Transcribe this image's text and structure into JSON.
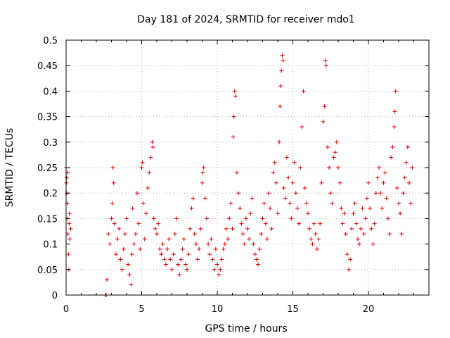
{
  "chart_data": {
    "type": "scatter",
    "title": "Day 181 of 2024, SRMTID for receiver mdo1",
    "xlabel": "GPS time / hours",
    "ylabel": "SRMTID / TECUs",
    "xlim": [
      0,
      24
    ],
    "ylim": [
      0,
      0.5
    ],
    "xticks": [
      0,
      5,
      10,
      15,
      20
    ],
    "xtick_labels": [
      "0",
      "5",
      "10",
      "15",
      "20"
    ],
    "yticks": [
      0,
      0.05,
      0.1,
      0.15,
      0.2,
      0.25,
      0.3,
      0.35,
      0.4,
      0.45,
      0.5
    ],
    "ytick_labels": [
      "0",
      "0.05",
      "0.1",
      "0.15",
      "0.2",
      "0.25",
      "0.3",
      "0.35",
      "0.4",
      "0.45",
      "0.5"
    ],
    "grid": true,
    "marker": "+",
    "marker_color": "#e00000",
    "series": [
      {
        "name": "SRMTID",
        "points": [
          [
            0.0,
            0.25
          ],
          [
            0.02,
            0.22
          ],
          [
            0.05,
            0.2
          ],
          [
            0.08,
            0.18
          ],
          [
            0.1,
            0.15
          ],
          [
            0.12,
            0.12
          ],
          [
            0.15,
            0.08
          ],
          [
            0.18,
            0.05
          ],
          [
            0.2,
            0.14
          ],
          [
            0.22,
            0.16
          ],
          [
            0.25,
            0.11
          ],
          [
            0.3,
            0.13
          ],
          [
            0.05,
            0.23
          ],
          [
            0.1,
            0.24
          ],
          [
            2.6,
            0.0
          ],
          [
            2.65,
            0.0
          ],
          [
            2.7,
            0.03
          ],
          [
            2.8,
            0.12
          ],
          [
            2.9,
            0.1
          ],
          [
            3.0,
            0.15
          ],
          [
            3.05,
            0.18
          ],
          [
            3.1,
            0.25
          ],
          [
            3.15,
            0.22
          ],
          [
            3.2,
            0.14
          ],
          [
            3.3,
            0.08
          ],
          [
            3.4,
            0.11
          ],
          [
            3.5,
            0.13
          ],
          [
            3.6,
            0.07
          ],
          [
            3.7,
            0.05
          ],
          [
            3.8,
            0.09
          ],
          [
            3.9,
            0.12
          ],
          [
            4.0,
            0.15
          ],
          [
            4.1,
            0.06
          ],
          [
            4.2,
            0.04
          ],
          [
            4.3,
            0.02
          ],
          [
            4.35,
            0.08
          ],
          [
            4.4,
            0.17
          ],
          [
            4.5,
            0.1
          ],
          [
            4.6,
            0.12
          ],
          [
            4.7,
            0.2
          ],
          [
            4.8,
            0.14
          ],
          [
            4.9,
            0.09
          ],
          [
            5.0,
            0.25
          ],
          [
            5.05,
            0.26
          ],
          [
            5.1,
            0.18
          ],
          [
            5.2,
            0.11
          ],
          [
            5.3,
            0.16
          ],
          [
            5.4,
            0.21
          ],
          [
            5.5,
            0.24
          ],
          [
            5.6,
            0.27
          ],
          [
            5.7,
            0.3
          ],
          [
            5.75,
            0.29
          ],
          [
            5.8,
            0.15
          ],
          [
            5.9,
            0.13
          ],
          [
            6.0,
            0.12
          ],
          [
            6.1,
            0.14
          ],
          [
            6.2,
            0.09
          ],
          [
            6.3,
            0.08
          ],
          [
            6.4,
            0.1
          ],
          [
            6.5,
            0.07
          ],
          [
            6.6,
            0.06
          ],
          [
            6.7,
            0.09
          ],
          [
            6.8,
            0.11
          ],
          [
            6.9,
            0.07
          ],
          [
            7.0,
            0.05
          ],
          [
            7.1,
            0.08
          ],
          [
            7.2,
            0.12
          ],
          [
            7.3,
            0.15
          ],
          [
            7.4,
            0.06
          ],
          [
            7.5,
            0.04
          ],
          [
            7.6,
            0.07
          ],
          [
            7.7,
            0.09
          ],
          [
            7.8,
            0.11
          ],
          [
            7.9,
            0.06
          ],
          [
            8.0,
            0.05
          ],
          [
            8.1,
            0.08
          ],
          [
            8.2,
            0.13
          ],
          [
            8.3,
            0.17
          ],
          [
            8.4,
            0.19
          ],
          [
            8.5,
            0.12
          ],
          [
            8.6,
            0.1
          ],
          [
            8.7,
            0.07
          ],
          [
            8.8,
            0.09
          ],
          [
            8.9,
            0.13
          ],
          [
            9.0,
            0.22
          ],
          [
            9.05,
            0.24
          ],
          [
            9.1,
            0.25
          ],
          [
            9.2,
            0.19
          ],
          [
            9.3,
            0.15
          ],
          [
            9.4,
            0.1
          ],
          [
            9.5,
            0.08
          ],
          [
            9.6,
            0.11
          ],
          [
            9.7,
            0.07
          ],
          [
            9.8,
            0.05
          ],
          [
            9.9,
            0.09
          ],
          [
            10.0,
            0.06
          ],
          [
            10.1,
            0.04
          ],
          [
            10.2,
            0.05
          ],
          [
            10.3,
            0.07
          ],
          [
            10.4,
            0.09
          ],
          [
            10.5,
            0.1
          ],
          [
            10.6,
            0.13
          ],
          [
            10.7,
            0.11
          ],
          [
            10.8,
            0.15
          ],
          [
            10.9,
            0.18
          ],
          [
            11.0,
            0.13
          ],
          [
            11.05,
            0.31
          ],
          [
            11.1,
            0.35
          ],
          [
            11.15,
            0.4
          ],
          [
            11.2,
            0.39
          ],
          [
            11.3,
            0.24
          ],
          [
            11.4,
            0.2
          ],
          [
            11.5,
            0.17
          ],
          [
            11.6,
            0.14
          ],
          [
            11.7,
            0.12
          ],
          [
            11.8,
            0.1
          ],
          [
            11.9,
            0.15
          ],
          [
            12.0,
            0.13
          ],
          [
            12.1,
            0.11
          ],
          [
            12.2,
            0.16
          ],
          [
            12.3,
            0.19
          ],
          [
            12.4,
            0.1
          ],
          [
            12.5,
            0.08
          ],
          [
            12.6,
            0.07
          ],
          [
            12.7,
            0.06
          ],
          [
            12.8,
            0.09
          ],
          [
            12.9,
            0.12
          ],
          [
            13.0,
            0.15
          ],
          [
            13.1,
            0.18
          ],
          [
            13.2,
            0.14
          ],
          [
            13.3,
            0.11
          ],
          [
            13.4,
            0.2
          ],
          [
            13.5,
            0.17
          ],
          [
            13.6,
            0.13
          ],
          [
            13.7,
            0.24
          ],
          [
            13.8,
            0.26
          ],
          [
            13.9,
            0.22
          ],
          [
            14.0,
            0.16
          ],
          [
            14.1,
            0.3
          ],
          [
            14.15,
            0.37
          ],
          [
            14.2,
            0.41
          ],
          [
            14.25,
            0.44
          ],
          [
            14.3,
            0.47
          ],
          [
            14.35,
            0.46
          ],
          [
            14.4,
            0.21
          ],
          [
            14.5,
            0.19
          ],
          [
            14.6,
            0.27
          ],
          [
            14.7,
            0.23
          ],
          [
            14.8,
            0.18
          ],
          [
            14.9,
            0.15
          ],
          [
            15.0,
            0.22
          ],
          [
            15.1,
            0.26
          ],
          [
            15.2,
            0.2
          ],
          [
            15.3,
            0.17
          ],
          [
            15.4,
            0.14
          ],
          [
            15.5,
            0.25
          ],
          [
            15.6,
            0.33
          ],
          [
            15.7,
            0.4
          ],
          [
            15.8,
            0.21
          ],
          [
            15.9,
            0.18
          ],
          [
            16.0,
            0.16
          ],
          [
            16.1,
            0.13
          ],
          [
            16.2,
            0.11
          ],
          [
            16.3,
            0.1
          ],
          [
            16.4,
            0.14
          ],
          [
            16.5,
            0.12
          ],
          [
            16.6,
            0.09
          ],
          [
            16.7,
            0.11
          ],
          [
            16.8,
            0.14
          ],
          [
            16.9,
            0.22
          ],
          [
            17.0,
            0.34
          ],
          [
            17.1,
            0.37
          ],
          [
            17.15,
            0.46
          ],
          [
            17.2,
            0.45
          ],
          [
            17.3,
            0.29
          ],
          [
            17.4,
            0.25
          ],
          [
            17.5,
            0.2
          ],
          [
            17.6,
            0.18
          ],
          [
            17.7,
            0.27
          ],
          [
            17.8,
            0.28
          ],
          [
            17.9,
            0.3
          ],
          [
            18.0,
            0.25
          ],
          [
            18.1,
            0.22
          ],
          [
            18.2,
            0.17
          ],
          [
            18.3,
            0.14
          ],
          [
            18.4,
            0.16
          ],
          [
            18.5,
            0.12
          ],
          [
            18.6,
            0.08
          ],
          [
            18.7,
            0.05
          ],
          [
            18.8,
            0.07
          ],
          [
            18.9,
            0.13
          ],
          [
            19.0,
            0.16
          ],
          [
            19.1,
            0.18
          ],
          [
            19.2,
            0.14
          ],
          [
            19.3,
            0.11
          ],
          [
            19.4,
            0.1
          ],
          [
            19.5,
            0.13
          ],
          [
            19.6,
            0.17
          ],
          [
            19.7,
            0.12
          ],
          [
            19.8,
            0.15
          ],
          [
            19.9,
            0.19
          ],
          [
            20.0,
            0.22
          ],
          [
            20.1,
            0.17
          ],
          [
            20.2,
            0.13
          ],
          [
            20.3,
            0.1
          ],
          [
            20.4,
            0.14
          ],
          [
            20.5,
            0.2
          ],
          [
            20.6,
            0.23
          ],
          [
            20.7,
            0.25
          ],
          [
            20.8,
            0.2
          ],
          [
            20.9,
            0.17
          ],
          [
            21.0,
            0.22
          ],
          [
            21.1,
            0.24
          ],
          [
            21.2,
            0.19
          ],
          [
            21.3,
            0.15
          ],
          [
            21.4,
            0.12
          ],
          [
            21.5,
            0.27
          ],
          [
            21.6,
            0.29
          ],
          [
            21.7,
            0.33
          ],
          [
            21.75,
            0.36
          ],
          [
            21.8,
            0.4
          ],
          [
            21.9,
            0.21
          ],
          [
            22.0,
            0.18
          ],
          [
            22.1,
            0.16
          ],
          [
            22.2,
            0.12
          ],
          [
            22.3,
            0.2
          ],
          [
            22.4,
            0.23
          ],
          [
            22.5,
            0.26
          ],
          [
            22.6,
            0.29
          ],
          [
            22.7,
            0.22
          ],
          [
            22.8,
            0.18
          ],
          [
            22.9,
            0.25
          ]
        ]
      }
    ]
  }
}
